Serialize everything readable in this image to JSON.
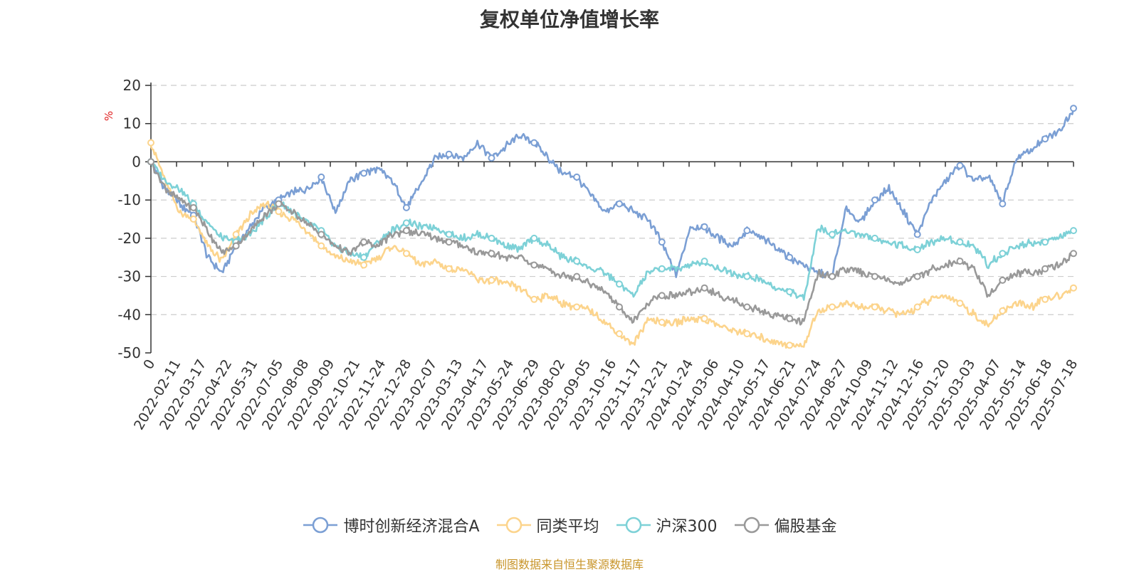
{
  "chart_data": {
    "type": "line",
    "title": "复权单位净值增长率",
    "ylabel": "%",
    "ylim": [
      -50,
      20
    ],
    "yticks": [
      20,
      10,
      0,
      -10,
      -20,
      -30,
      -40,
      -50
    ],
    "grid": true,
    "legend_position": "bottom",
    "x_tick_labels": [
      "0",
      "2022-02-11",
      "2022-03-17",
      "2022-04-22",
      "2022-05-31",
      "2022-07-05",
      "2022-08-08",
      "2022-09-09",
      "2022-10-21",
      "2022-11-24",
      "2022-12-28",
      "2023-02-07",
      "2023-03-13",
      "2023-04-17",
      "2023-05-24",
      "2023-06-29",
      "2023-08-02",
      "2023-09-05",
      "2023-10-16",
      "2023-11-17",
      "2023-12-21",
      "2024-01-24",
      "2024-03-06",
      "2024-04-10",
      "2024-05-17",
      "2024-06-21",
      "2024-07-24",
      "2024-08-27",
      "2024-10-09",
      "2024-11-12",
      "2024-12-16",
      "2025-01-20",
      "2025-03-03",
      "2025-04-07",
      "2025-05-14",
      "2025-06-18",
      "2025-07-18"
    ],
    "series": [
      {
        "name": "博时创新经济混合A",
        "color": "#7b9fd4",
        "values": [
          0,
          -7,
          -11,
          -14,
          -25,
          -29,
          -22,
          -17,
          -12,
          -10,
          -8,
          -7,
          -4,
          -13,
          -5,
          -3,
          -2,
          -5,
          -12,
          -6,
          1,
          2,
          1,
          5,
          1,
          4,
          7,
          5,
          1,
          -3,
          -4,
          -9,
          -13,
          -11,
          -13,
          -15,
          -21,
          -30,
          -17,
          -17,
          -20,
          -22,
          -18,
          -20,
          -22,
          -25,
          -27,
          -29,
          -30,
          -12,
          -16,
          -10,
          -7,
          -13,
          -19,
          -10,
          -5,
          -1,
          -5,
          -4,
          -11,
          1,
          3,
          6,
          8,
          14
        ]
      },
      {
        "name": "同类平均",
        "color": "#fcd48c",
        "values": [
          5,
          -5,
          -13,
          -15,
          -22,
          -26,
          -19,
          -14,
          -11,
          -13,
          -15,
          -18,
          -22,
          -25,
          -26,
          -27,
          -25,
          -22,
          -24,
          -27,
          -26,
          -28,
          -28,
          -31,
          -31,
          -32,
          -33,
          -36,
          -35,
          -37,
          -38,
          -39,
          -42,
          -45,
          -48,
          -41,
          -42,
          -42,
          -41,
          -41,
          -43,
          -44,
          -45,
          -46,
          -47,
          -48,
          -48,
          -39,
          -38,
          -37,
          -38,
          -38,
          -39,
          -40,
          -38,
          -36,
          -35,
          -37,
          -40,
          -43,
          -39,
          -37,
          -38,
          -36,
          -35,
          -33
        ]
      },
      {
        "name": "沪深300",
        "color": "#7dd1d7",
        "values": [
          0,
          -5,
          -7,
          -11,
          -16,
          -20,
          -21,
          -19,
          -15,
          -11,
          -13,
          -16,
          -18,
          -22,
          -24,
          -25,
          -21,
          -18,
          -16,
          -17,
          -17,
          -19,
          -20,
          -19,
          -20,
          -22,
          -23,
          -20,
          -22,
          -25,
          -26,
          -28,
          -29,
          -32,
          -35,
          -29,
          -28,
          -28,
          -27,
          -26,
          -28,
          -29,
          -30,
          -31,
          -33,
          -34,
          -36,
          -17,
          -19,
          -18,
          -19,
          -20,
          -21,
          -22,
          -23,
          -21,
          -20,
          -21,
          -22,
          -27,
          -24,
          -22,
          -21,
          -21,
          -20,
          -18
        ]
      },
      {
        "name": "偏股基金",
        "color": "#999999",
        "values": [
          0,
          -7,
          -10,
          -12,
          -18,
          -24,
          -22,
          -18,
          -14,
          -11,
          -13,
          -16,
          -19,
          -22,
          -24,
          -21,
          -22,
          -19,
          -18,
          -19,
          -20,
          -21,
          -22,
          -24,
          -24,
          -25,
          -25,
          -27,
          -28,
          -30,
          -30,
          -32,
          -34,
          -38,
          -42,
          -37,
          -35,
          -35,
          -34,
          -33,
          -35,
          -36,
          -38,
          -39,
          -40,
          -41,
          -42,
          -29,
          -30,
          -28,
          -29,
          -30,
          -31,
          -32,
          -30,
          -28,
          -27,
          -26,
          -28,
          -35,
          -31,
          -29,
          -29,
          -28,
          -27,
          -24
        ]
      }
    ]
  },
  "source_note": "制图数据来自恒生聚源数据库"
}
